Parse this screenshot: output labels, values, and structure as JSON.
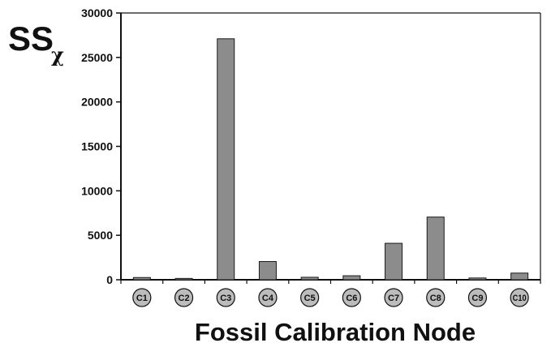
{
  "chart_data": {
    "type": "bar",
    "title": "",
    "xlabel": "Fossil Calibration Node",
    "ylabel": {
      "main": "SS",
      "subscript": "χ"
    },
    "categories": [
      "C1",
      "C2",
      "C3",
      "C4",
      "C5",
      "C6",
      "C7",
      "C8",
      "C9",
      "C10"
    ],
    "values": [
      250,
      150,
      27100,
      2050,
      280,
      450,
      4100,
      7050,
      200,
      750
    ],
    "ylim": [
      0,
      30000
    ],
    "yticks": [
      0,
      5000,
      10000,
      15000,
      20000,
      25000,
      30000
    ],
    "ytick_labels": [
      "0",
      "5000",
      "10000",
      "15000",
      "20000",
      "25000",
      "30000"
    ],
    "grid": false,
    "legend": "none",
    "colors": {
      "bar_fill": "#8c8c8c",
      "bar_stroke": "#1a1a1a",
      "category_circle_fill": "#bcbcbc",
      "axis": "#111111"
    }
  }
}
